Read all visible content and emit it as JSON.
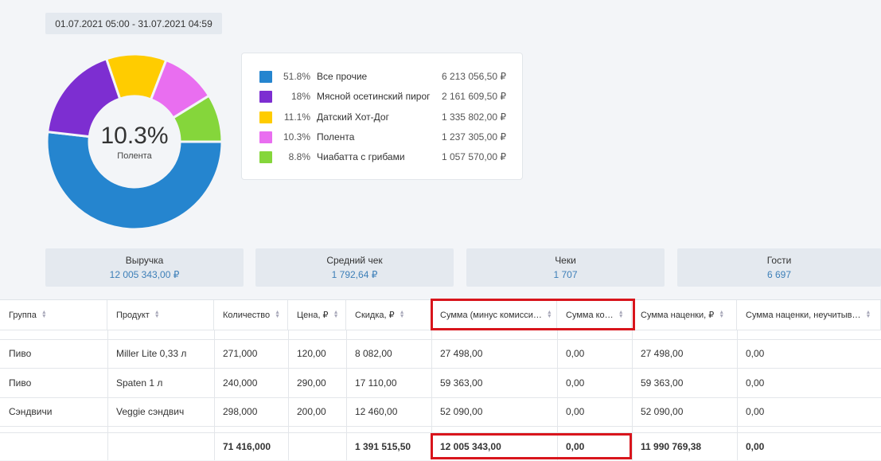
{
  "date_range": "01.07.2021 05:00 - 31.07.2021 04:59",
  "donut": {
    "center_percent": "10.3%",
    "center_label": "Полента"
  },
  "chart_data": {
    "type": "pie",
    "categories": [
      "Все прочие",
      "Мясной осетинский пирог",
      "Датский Хот-Дог",
      "Полента",
      "Чиабатта с грибами"
    ],
    "values": [
      51.8,
      18,
      11.1,
      10.3,
      8.8
    ],
    "colors": [
      "#2585cf",
      "#7d2ed1",
      "#ffcc00",
      "#e96ef0",
      "#85d63b"
    ]
  },
  "legend": [
    {
      "percent": "51.8%",
      "name": "Все прочие",
      "value": "6 213 056,50 ₽",
      "color": "#2585cf"
    },
    {
      "percent": "18%",
      "name": "Мясной осетинский пирог",
      "value": "2 161 609,50 ₽",
      "color": "#7d2ed1"
    },
    {
      "percent": "11.1%",
      "name": "Датский Хот-Дог",
      "value": "1 335 802,00 ₽",
      "color": "#ffcc00"
    },
    {
      "percent": "10.3%",
      "name": "Полента",
      "value": "1 237 305,00 ₽",
      "color": "#e96ef0"
    },
    {
      "percent": "8.8%",
      "name": "Чиабатта с грибами",
      "value": "1 057 570,00 ₽",
      "color": "#85d63b"
    }
  ],
  "kpis": [
    {
      "title": "Выручка",
      "value": "12 005 343,00 ₽"
    },
    {
      "title": "Средний чек",
      "value": "1 792,64 ₽"
    },
    {
      "title": "Чеки",
      "value": "1 707"
    },
    {
      "title": "Гости",
      "value": "6 697"
    }
  ],
  "table": {
    "sort_icon": "sort-icon",
    "columns": [
      "Группа",
      "Продукт",
      "Количество",
      "Цена, ₽",
      "Скидка, ₽",
      "Сумма (минус комисси…",
      "Сумма ко…",
      "Сумма наценки, ₽",
      "Сумма наценки, неучитыв…"
    ],
    "rows": [
      [
        "Пиво",
        "Miller Lite 0,33 л",
        "271,000",
        "120,00",
        "8 082,00",
        "27 498,00",
        "0,00",
        "27 498,00",
        "0,00"
      ],
      [
        "Пиво",
        "Spaten 1 л",
        "240,000",
        "290,00",
        "17 110,00",
        "59 363,00",
        "0,00",
        "59 363,00",
        "0,00"
      ],
      [
        "Сэндвичи",
        "Veggie сэндвич",
        "298,000",
        "200,00",
        "12 460,00",
        "52 090,00",
        "0,00",
        "52 090,00",
        "0,00"
      ]
    ],
    "totals": [
      "",
      "",
      "71 416,000",
      "",
      "1 391 515,50",
      "12 005 343,00",
      "0,00",
      "11 990 769,38",
      "0,00"
    ]
  }
}
